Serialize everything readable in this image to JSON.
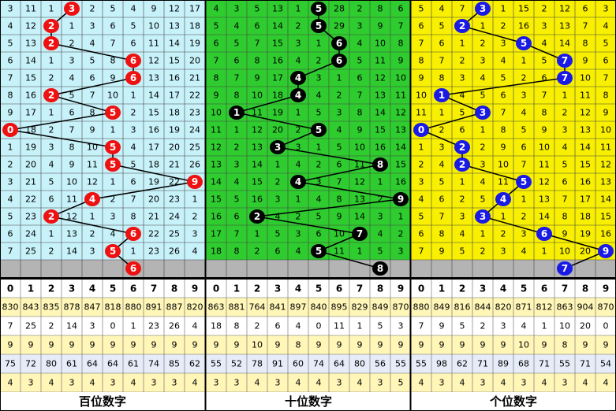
{
  "digits": [
    0,
    1,
    2,
    3,
    4,
    5,
    6,
    7,
    8,
    9
  ],
  "panels": [
    {
      "label": "百位数字",
      "bg": "#c8f2fa",
      "ball_color": "#ee1111",
      "draws": [
        3,
        2,
        2,
        6,
        6,
        2,
        5,
        0,
        5,
        5,
        9,
        4,
        2,
        6,
        5
      ],
      "next": 6,
      "rows": [
        [
          3,
          11,
          1,
          null,
          2,
          5,
          4,
          9,
          12,
          17
        ],
        [
          4,
          12,
          null,
          1,
          3,
          6,
          5,
          10,
          13,
          18
        ],
        [
          5,
          13,
          null,
          2,
          4,
          7,
          6,
          11,
          14,
          19
        ],
        [
          6,
          14,
          1,
          3,
          5,
          8,
          null,
          12,
          15,
          20
        ],
        [
          7,
          15,
          2,
          4,
          6,
          9,
          null,
          13,
          16,
          21
        ],
        [
          8,
          16,
          null,
          5,
          7,
          10,
          1,
          14,
          17,
          22
        ],
        [
          9,
          17,
          1,
          6,
          8,
          null,
          2,
          15,
          18,
          23
        ],
        [
          null,
          18,
          2,
          7,
          9,
          1,
          3,
          16,
          19,
          24
        ],
        [
          1,
          19,
          3,
          8,
          10,
          null,
          4,
          17,
          20,
          25
        ],
        [
          2,
          20,
          4,
          9,
          11,
          null,
          5,
          18,
          21,
          26
        ],
        [
          3,
          21,
          5,
          10,
          12,
          1,
          6,
          19,
          22,
          null
        ],
        [
          4,
          22,
          6,
          11,
          null,
          2,
          7,
          20,
          23,
          1
        ],
        [
          5,
          23,
          null,
          12,
          1,
          3,
          8,
          21,
          24,
          2
        ],
        [
          6,
          24,
          1,
          13,
          2,
          4,
          null,
          22,
          25,
          3
        ],
        [
          7,
          25,
          2,
          14,
          3,
          null,
          1,
          23,
          26,
          4
        ]
      ],
      "stats": [
        [
          830,
          843,
          835,
          878,
          847,
          818,
          880,
          891,
          887,
          820
        ],
        [
          7,
          25,
          2,
          14,
          3,
          0,
          1,
          23,
          26,
          4
        ],
        [
          9,
          9,
          9,
          9,
          9,
          9,
          9,
          9,
          9,
          9
        ],
        [
          75,
          72,
          80,
          61,
          64,
          64,
          61,
          74,
          85,
          62
        ],
        [
          4,
          3,
          4,
          3,
          4,
          3,
          4,
          3,
          3,
          4
        ]
      ]
    },
    {
      "label": "十位数字",
      "bg": "#2fcc2f",
      "ball_color": "#000000",
      "draws": [
        5,
        5,
        6,
        6,
        4,
        4,
        1,
        5,
        3,
        8,
        4,
        9,
        2,
        7,
        5
      ],
      "next": 8,
      "rows": [
        [
          4,
          3,
          5,
          13,
          1,
          null,
          28,
          2,
          8,
          6
        ],
        [
          5,
          4,
          6,
          14,
          2,
          null,
          29,
          3,
          9,
          7
        ],
        [
          6,
          5,
          7,
          15,
          3,
          1,
          null,
          4,
          10,
          8
        ],
        [
          7,
          6,
          8,
          16,
          4,
          2,
          null,
          5,
          11,
          9
        ],
        [
          8,
          7,
          9,
          17,
          null,
          3,
          1,
          6,
          12,
          10
        ],
        [
          9,
          8,
          10,
          18,
          null,
          4,
          2,
          7,
          13,
          11
        ],
        [
          10,
          null,
          11,
          19,
          1,
          5,
          3,
          8,
          14,
          12
        ],
        [
          11,
          1,
          12,
          20,
          2,
          null,
          4,
          9,
          15,
          13
        ],
        [
          12,
          2,
          13,
          null,
          3,
          1,
          5,
          10,
          16,
          14
        ],
        [
          13,
          3,
          14,
          1,
          4,
          2,
          6,
          11,
          null,
          15
        ],
        [
          14,
          4,
          15,
          2,
          null,
          3,
          7,
          12,
          1,
          16
        ],
        [
          15,
          5,
          16,
          3,
          1,
          4,
          8,
          13,
          2,
          null
        ],
        [
          16,
          6,
          null,
          4,
          2,
          5,
          9,
          14,
          3,
          1
        ],
        [
          17,
          7,
          1,
          5,
          3,
          6,
          10,
          null,
          4,
          2
        ],
        [
          18,
          8,
          2,
          6,
          4,
          null,
          11,
          1,
          5,
          3
        ]
      ],
      "stats": [
        [
          863,
          881,
          764,
          841,
          897,
          840,
          895,
          829,
          849,
          870
        ],
        [
          18,
          8,
          2,
          6,
          4,
          0,
          11,
          1,
          5,
          3
        ],
        [
          9,
          9,
          10,
          9,
          8,
          9,
          9,
          9,
          9,
          9
        ],
        [
          55,
          52,
          78,
          91,
          60,
          74,
          64,
          80,
          56,
          55
        ],
        [
          3,
          3,
          4,
          3,
          4,
          4,
          3,
          4,
          3,
          5
        ]
      ]
    },
    {
      "label": "个位数字",
      "bg": "#f8f000",
      "ball_color": "#1a1ae6",
      "draws": [
        3,
        2,
        5,
        7,
        7,
        1,
        3,
        0,
        2,
        2,
        5,
        4,
        3,
        6,
        9
      ],
      "next": 7,
      "rows": [
        [
          5,
          4,
          7,
          null,
          1,
          15,
          2,
          12,
          6,
          3
        ],
        [
          6,
          5,
          null,
          1,
          2,
          16,
          3,
          13,
          7,
          4
        ],
        [
          7,
          6,
          1,
          2,
          3,
          null,
          4,
          14,
          8,
          5
        ],
        [
          8,
          7,
          2,
          3,
          4,
          1,
          5,
          null,
          9,
          6
        ],
        [
          9,
          8,
          3,
          4,
          5,
          2,
          6,
          null,
          10,
          7
        ],
        [
          10,
          null,
          4,
          5,
          6,
          3,
          7,
          1,
          11,
          8
        ],
        [
          11,
          1,
          5,
          null,
          7,
          4,
          8,
          2,
          12,
          9
        ],
        [
          null,
          2,
          6,
          1,
          8,
          5,
          9,
          3,
          13,
          10
        ],
        [
          1,
          3,
          null,
          2,
          9,
          6,
          10,
          4,
          14,
          11
        ],
        [
          2,
          4,
          null,
          3,
          10,
          7,
          11,
          5,
          15,
          12
        ],
        [
          3,
          5,
          1,
          4,
          11,
          null,
          12,
          6,
          16,
          13
        ],
        [
          4,
          6,
          2,
          5,
          null,
          1,
          13,
          7,
          17,
          14
        ],
        [
          5,
          7,
          3,
          null,
          1,
          2,
          14,
          8,
          18,
          15
        ],
        [
          6,
          8,
          4,
          1,
          2,
          3,
          null,
          9,
          19,
          16
        ],
        [
          7,
          9,
          5,
          2,
          3,
          4,
          1,
          10,
          20,
          null
        ]
      ],
      "stats": [
        [
          880,
          849,
          816,
          844,
          820,
          871,
          812,
          863,
          904,
          870
        ],
        [
          7,
          9,
          5,
          2,
          3,
          4,
          1,
          10,
          20,
          0
        ],
        [
          9,
          9,
          9,
          9,
          9,
          10,
          9,
          8,
          9,
          9
        ],
        [
          55,
          98,
          62,
          71,
          89,
          68,
          71,
          55,
          71,
          54
        ],
        [
          4,
          3,
          4,
          3,
          4,
          3,
          4,
          3,
          4,
          4
        ]
      ]
    }
  ]
}
